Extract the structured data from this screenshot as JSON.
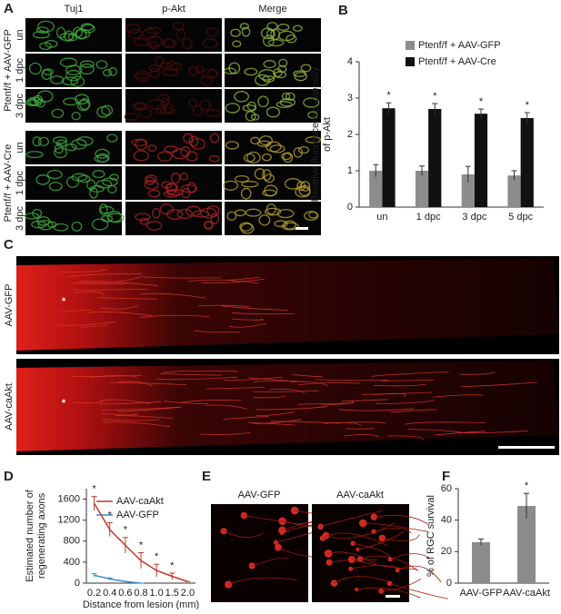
{
  "panel_labels": [
    "A",
    "B",
    "C",
    "D",
    "E",
    "F"
  ],
  "panel_a": {
    "columns": [
      "Tuj1",
      "p-Akt",
      "Merge"
    ],
    "groups": [
      {
        "label": "Ptenf/f + AAV-GFP",
        "rows": [
          "un",
          "1 dpc",
          "3 dpc"
        ]
      },
      {
        "label": "Ptenf/f + AAV-Cre",
        "rows": [
          "un",
          "1 dpc",
          "3 dpc"
        ]
      }
    ]
  },
  "panel_c": {
    "rows": [
      "AAV-GFP",
      "AAV-caAkt"
    ],
    "marker": "*"
  },
  "panel_e": {
    "columns": [
      "AAV-GFP",
      "AAV-caAkt"
    ]
  },
  "chart_data": [
    {
      "type": "bar",
      "ylabel": [
        "Relative fluorescence intensity",
        "of p-Akt"
      ],
      "categories": [
        "un",
        "1 dpc",
        "3 dpc",
        "5 dpc"
      ],
      "series": [
        {
          "name": "Ptenf/f + AAV-GFP",
          "color": "#8c8c8c",
          "values": [
            1.0,
            1.0,
            0.9,
            0.87
          ],
          "errors": [
            0.17,
            0.13,
            0.22,
            0.13
          ]
        },
        {
          "name": "Ptenf/f + AAV-Cre",
          "color": "#111111",
          "values": [
            2.72,
            2.7,
            2.57,
            2.45
          ],
          "errors": [
            0.15,
            0.15,
            0.13,
            0.15
          ]
        }
      ],
      "significance": [
        "*",
        "*",
        "*",
        "*"
      ],
      "ylim": [
        0,
        4
      ],
      "yticks": [
        0,
        1,
        2,
        3,
        4
      ]
    },
    {
      "type": "line",
      "ylabel": [
        "Estimated number of",
        "regenerating axons"
      ],
      "xlabel": "Distance from lesion (mm)",
      "categories": [
        "0.2",
        "0.4",
        "0.6",
        "0.8",
        "1.0",
        "1.5",
        "2.0"
      ],
      "series": [
        {
          "name": "AAV-caAkt",
          "color": "#c0392b",
          "values": [
            1520,
            1020,
            720,
            430,
            240,
            130,
            30
          ],
          "errors": [
            130,
            130,
            150,
            150,
            120,
            60,
            0
          ]
        },
        {
          "name": "AAV-GFP",
          "color": "#3a8fd0",
          "values": [
            150,
            80,
            30,
            0,
            null,
            null,
            null
          ],
          "errors": [
            30,
            20,
            0,
            0,
            null,
            null,
            null
          ]
        }
      ],
      "significance": [
        "*",
        "*",
        "*",
        "*",
        "*",
        "*",
        null
      ],
      "ylim": [
        0,
        1800
      ],
      "yticks": [
        0,
        400,
        800,
        1200,
        1600
      ]
    },
    {
      "type": "bar",
      "ylabel": [
        "% of RGC survival"
      ],
      "categories": [
        "AAV-GFP",
        "AAV-caAkt"
      ],
      "values": [
        26,
        49
      ],
      "errors": [
        2,
        8
      ],
      "color": "#8c8c8c",
      "significance": [
        null,
        "*"
      ],
      "ylim": [
        0,
        60
      ],
      "yticks": [
        0,
        20,
        40,
        60
      ]
    }
  ]
}
